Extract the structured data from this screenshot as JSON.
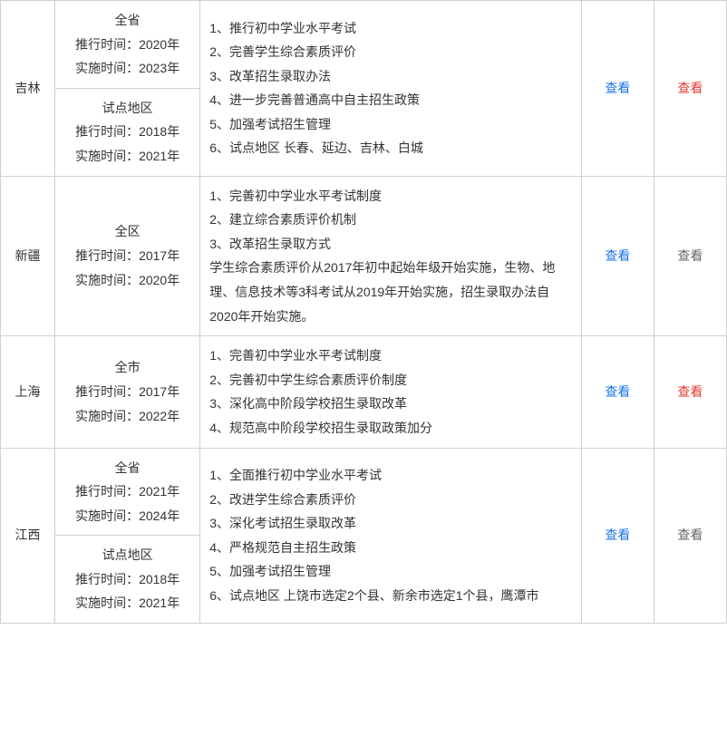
{
  "rows": [
    {
      "province": "吉林",
      "scopes": [
        {
          "title": "全省",
          "lines": [
            "推行时间：2020年",
            "实施时间：2023年"
          ]
        },
        {
          "title": "试点地区",
          "lines": [
            "推行时间：2018年",
            "实施时间：2021年"
          ]
        }
      ],
      "details": [
        "1、推行初中学业水平考试",
        "2、完善学生综合素质评价",
        "3、改革招生录取办法",
        "4、进一步完善普通高中自主招生政策",
        "5、加强考试招生管理",
        "6、试点地区 长春、延边、吉林、白城"
      ],
      "link1": {
        "text": "查看",
        "style": "link-blue"
      },
      "link2": {
        "text": "查看",
        "style": "link-red"
      }
    },
    {
      "province": "新疆",
      "scopes": [
        {
          "title": "全区",
          "lines": [
            "推行时间：2017年",
            "实施时间：2020年"
          ]
        }
      ],
      "details": [
        "1、完善初中学业水平考试制度",
        "2、建立综合素质评价机制",
        "3、改革招生录取方式",
        "学生综合素质评价从2017年初中起始年级开始实施，生物、地理、信息技术等3科考试从2019年开始实施，招生录取办法自2020年开始实施。"
      ],
      "link1": {
        "text": "查看",
        "style": "link-blue"
      },
      "link2": {
        "text": "查看",
        "style": "link-gray"
      }
    },
    {
      "province": "上海",
      "scopes": [
        {
          "title": "全市",
          "lines": [
            "推行时间：2017年",
            "实施时间：2022年"
          ]
        }
      ],
      "details": [
        "1、完善初中学业水平考试制度",
        "2、完善初中学生综合素质评价制度",
        "3、深化高中阶段学校招生录取改革",
        "4、规范高中阶段学校招生录取政策加分"
      ],
      "link1": {
        "text": "查看",
        "style": "link-blue"
      },
      "link2": {
        "text": "查看",
        "style": "link-red"
      }
    },
    {
      "province": "江西",
      "scopes": [
        {
          "title": "全省",
          "lines": [
            "推行时间：2021年",
            "实施时间：2024年"
          ]
        },
        {
          "title": "试点地区",
          "lines": [
            "推行时间：2018年",
            "实施时间：2021年"
          ]
        }
      ],
      "details": [
        "1、全面推行初中学业水平考试",
        "2、改进学生综合素质评价",
        "3、深化考试招生录取改革",
        "4、严格规范自主招生政策",
        "5、加强考试招生管理",
        "6、试点地区 上饶市选定2个县、新余市选定1个县，鹰潭市"
      ],
      "link1": {
        "text": "查看",
        "style": "link-blue"
      },
      "link2": {
        "text": "查看",
        "style": "link-gray"
      }
    }
  ]
}
